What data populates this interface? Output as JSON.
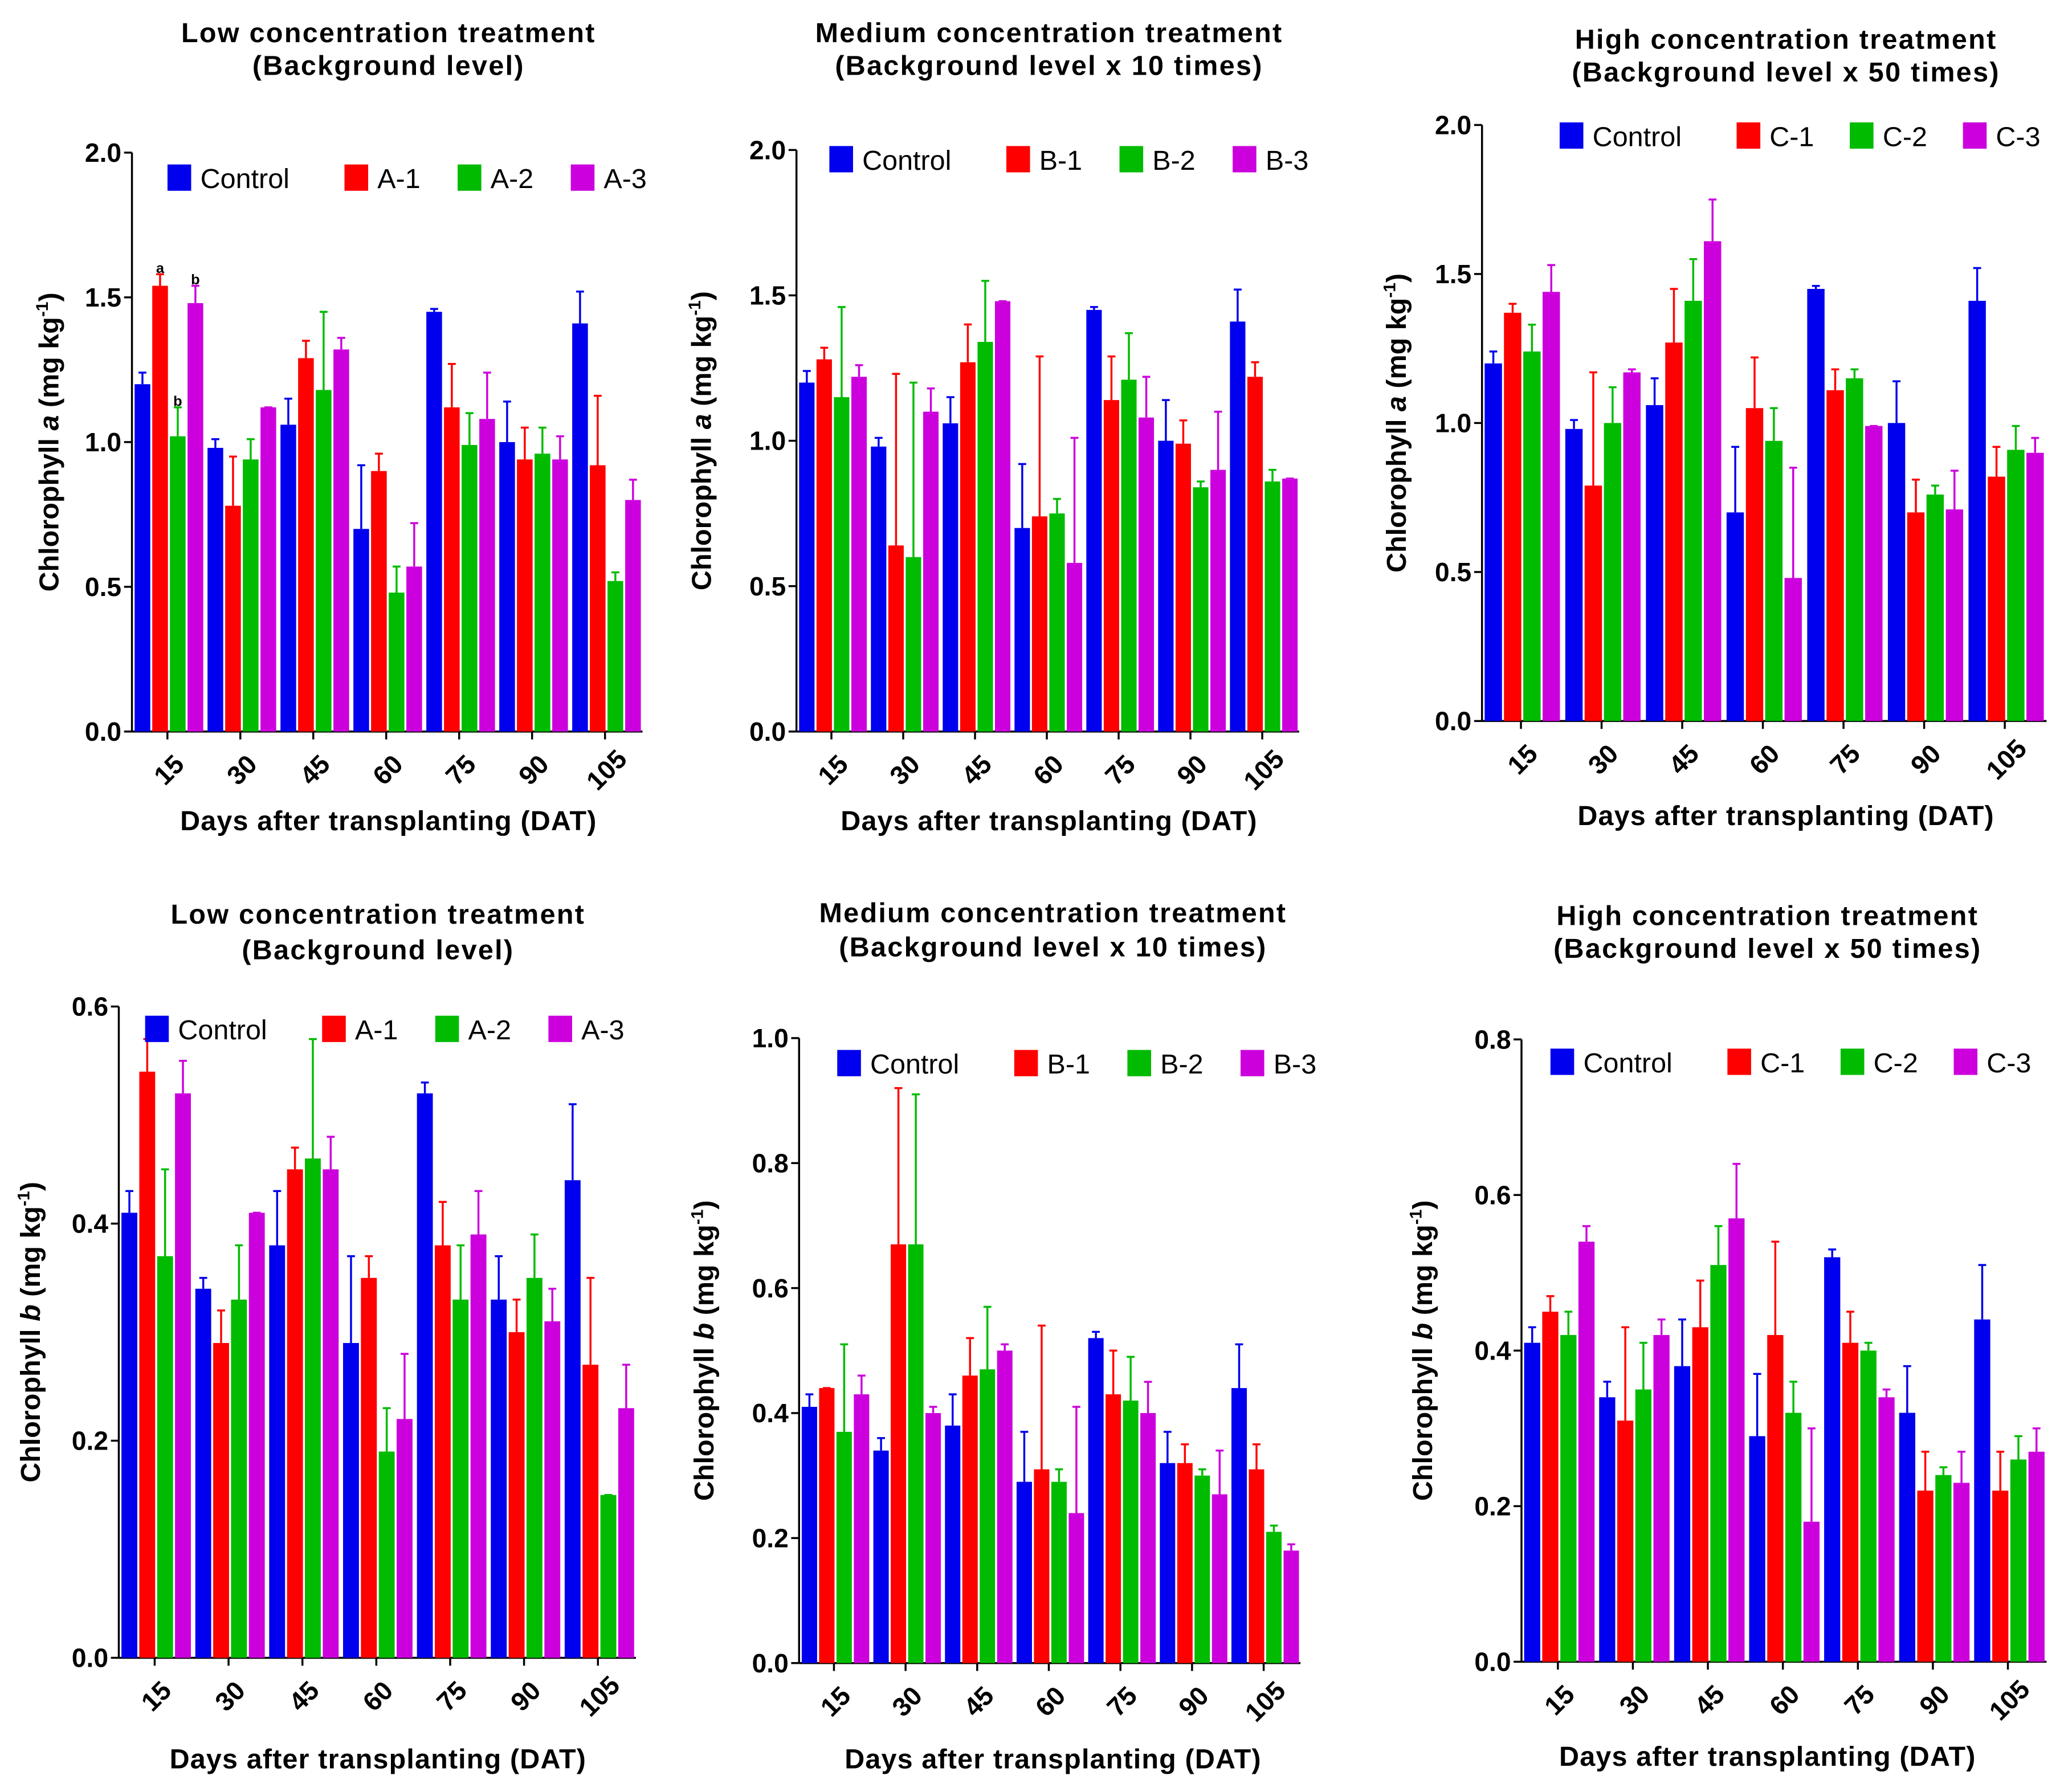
{
  "colors": {
    "Control": "#0000ee",
    "T1": "#ff0000",
    "T2": "#00bb00",
    "T3": "#cc00dd"
  },
  "chart_data": [
    {
      "type": "bar",
      "title": [
        "Low concentration treatment",
        "(Background level)"
      ],
      "ylabel": {
        "pre": "Chlorophyll ",
        "var": "a",
        "mid": " (mg kg",
        "sup": "-1",
        "post": ")"
      },
      "xlabel": "Days after transplanting (DAT)",
      "categories": [
        "15",
        "30",
        "45",
        "60",
        "75",
        "90",
        "105"
      ],
      "ylim": [
        0,
        2.0
      ],
      "yticks": [
        "0.0",
        "0.5",
        "1.0",
        "1.5",
        "2.0"
      ],
      "legend": "top",
      "annotations": [
        {
          "series": "A-1",
          "category": "15",
          "text": "a"
        },
        {
          "series": "A-2",
          "category": "15",
          "text": "b"
        },
        {
          "series": "A-3",
          "category": "15",
          "text": "b"
        }
      ],
      "series": [
        {
          "name": "Control",
          "values": [
            1.2,
            0.98,
            1.06,
            0.7,
            1.45,
            1.0,
            1.41
          ],
          "upper": [
            1.24,
            1.01,
            1.15,
            0.92,
            1.46,
            1.14,
            1.52
          ]
        },
        {
          "name": "A-1",
          "values": [
            1.54,
            0.78,
            1.29,
            0.9,
            1.12,
            0.94,
            0.92
          ],
          "upper": [
            1.58,
            0.95,
            1.35,
            0.96,
            1.27,
            1.05,
            1.16
          ]
        },
        {
          "name": "A-2",
          "values": [
            1.02,
            0.94,
            1.18,
            0.48,
            0.99,
            0.96,
            0.52
          ],
          "upper": [
            1.12,
            1.01,
            1.45,
            0.57,
            1.1,
            1.05,
            0.55
          ]
        },
        {
          "name": "A-3",
          "values": [
            1.48,
            1.12,
            1.32,
            0.57,
            1.08,
            0.94,
            0.8
          ],
          "upper": [
            1.54,
            1.12,
            1.36,
            0.72,
            1.24,
            1.02,
            0.87
          ]
        }
      ]
    },
    {
      "type": "bar",
      "title": [
        "Medium concentration treatment",
        "(Background level x 10 times)"
      ],
      "ylabel": {
        "pre": "Chlorophyll ",
        "var": "a",
        "mid": " (mg kg",
        "sup": "-1",
        "post": ")"
      },
      "xlabel": "Days after transplanting (DAT)",
      "categories": [
        "15",
        "30",
        "45",
        "60",
        "75",
        "90",
        "105"
      ],
      "ylim": [
        0,
        2.0
      ],
      "yticks": [
        "0.0",
        "0.5",
        "1.0",
        "1.5",
        "2.0"
      ],
      "legend": "top",
      "series": [
        {
          "name": "Control",
          "values": [
            1.2,
            0.98,
            1.06,
            0.7,
            1.45,
            1.0,
            1.41
          ],
          "upper": [
            1.24,
            1.01,
            1.15,
            0.92,
            1.46,
            1.14,
            1.52
          ]
        },
        {
          "name": "B-1",
          "values": [
            1.28,
            0.64,
            1.27,
            0.74,
            1.14,
            0.99,
            1.22
          ],
          "upper": [
            1.32,
            1.23,
            1.4,
            1.29,
            1.29,
            1.07,
            1.27
          ]
        },
        {
          "name": "B-2",
          "values": [
            1.15,
            0.6,
            1.34,
            0.75,
            1.21,
            0.84,
            0.86
          ],
          "upper": [
            1.46,
            1.2,
            1.55,
            0.8,
            1.37,
            0.86,
            0.9
          ]
        },
        {
          "name": "B-3",
          "values": [
            1.22,
            1.1,
            1.48,
            0.58,
            1.08,
            0.9,
            0.87
          ],
          "upper": [
            1.26,
            1.18,
            1.48,
            1.01,
            1.22,
            1.1,
            0.87
          ]
        }
      ]
    },
    {
      "type": "bar",
      "title": [
        "High concentration treatment",
        "(Background level x 50 times)"
      ],
      "ylabel": {
        "pre": "Chlorophyll ",
        "var": "a",
        "mid": " (mg kg",
        "sup": "-1",
        "post": ")"
      },
      "xlabel": "Days after transplanting (DAT)",
      "categories": [
        "15",
        "30",
        "45",
        "60",
        "75",
        "90",
        "105"
      ],
      "ylim": [
        0,
        2.0
      ],
      "yticks": [
        "0.0",
        "0.5",
        "1.0",
        "1.5",
        "2.0"
      ],
      "legend": "top",
      "series": [
        {
          "name": "Control",
          "values": [
            1.2,
            0.98,
            1.06,
            0.7,
            1.45,
            1.0,
            1.41
          ],
          "upper": [
            1.24,
            1.01,
            1.15,
            0.92,
            1.46,
            1.14,
            1.52
          ]
        },
        {
          "name": "C-1",
          "values": [
            1.37,
            0.79,
            1.27,
            1.05,
            1.11,
            0.7,
            0.82
          ],
          "upper": [
            1.4,
            1.17,
            1.45,
            1.22,
            1.18,
            0.81,
            0.92
          ]
        },
        {
          "name": "C-2",
          "values": [
            1.24,
            1.0,
            1.41,
            0.94,
            1.15,
            0.76,
            0.91
          ],
          "upper": [
            1.33,
            1.12,
            1.55,
            1.05,
            1.18,
            0.79,
            0.99
          ]
        },
        {
          "name": "C-3",
          "values": [
            1.44,
            1.17,
            1.61,
            0.48,
            0.99,
            0.71,
            0.9
          ],
          "upper": [
            1.53,
            1.18,
            1.75,
            0.85,
            0.99,
            0.84,
            0.95
          ]
        }
      ]
    },
    {
      "type": "bar",
      "title": [
        "Low concentration treatment",
        "(Background level)"
      ],
      "ylabel": {
        "pre": "Chlorophyll ",
        "var": "b",
        "mid": " (mg kg",
        "sup": "-1",
        "post": ")"
      },
      "xlabel": "Days after transplanting (DAT)",
      "categories": [
        "15",
        "30",
        "45",
        "60",
        "75",
        "90",
        "105"
      ],
      "ylim": [
        0,
        0.6
      ],
      "yticks": [
        "0.0",
        "0.2",
        "0.4",
        "0.6"
      ],
      "legend": "top",
      "series": [
        {
          "name": "Control",
          "values": [
            0.41,
            0.34,
            0.38,
            0.29,
            0.52,
            0.33,
            0.44
          ],
          "upper": [
            0.43,
            0.35,
            0.43,
            0.37,
            0.53,
            0.37,
            0.51
          ]
        },
        {
          "name": "A-1",
          "values": [
            0.54,
            0.29,
            0.45,
            0.35,
            0.38,
            0.3,
            0.27
          ],
          "upper": [
            0.57,
            0.32,
            0.47,
            0.37,
            0.42,
            0.33,
            0.35
          ]
        },
        {
          "name": "A-2",
          "values": [
            0.37,
            0.33,
            0.46,
            0.19,
            0.33,
            0.35,
            0.15
          ],
          "upper": [
            0.45,
            0.38,
            0.57,
            0.23,
            0.38,
            0.39,
            0.15
          ]
        },
        {
          "name": "A-3",
          "values": [
            0.52,
            0.41,
            0.45,
            0.22,
            0.39,
            0.31,
            0.23
          ],
          "upper": [
            0.55,
            0.41,
            0.48,
            0.28,
            0.43,
            0.34,
            0.27
          ]
        }
      ]
    },
    {
      "type": "bar",
      "title": [
        "Medium concentration treatment",
        "(Background level x 10 times)"
      ],
      "ylabel": {
        "pre": "Chlorophyll ",
        "var": "b",
        "mid": " (mg kg",
        "sup": "-1",
        "post": ")"
      },
      "xlabel": "Days after transplanting (DAT)",
      "categories": [
        "15",
        "30",
        "45",
        "60",
        "75",
        "90",
        "105"
      ],
      "ylim": [
        0,
        1.0
      ],
      "yticks": [
        "0.0",
        "0.2",
        "0.4",
        "0.6",
        "0.8",
        "1.0"
      ],
      "legend": "top",
      "series": [
        {
          "name": "Control",
          "values": [
            0.41,
            0.34,
            0.38,
            0.29,
            0.52,
            0.32,
            0.44
          ],
          "upper": [
            0.43,
            0.36,
            0.43,
            0.37,
            0.53,
            0.37,
            0.51
          ]
        },
        {
          "name": "B-1",
          "values": [
            0.44,
            0.67,
            0.46,
            0.31,
            0.43,
            0.32,
            0.31
          ],
          "upper": [
            0.44,
            0.92,
            0.52,
            0.54,
            0.5,
            0.35,
            0.35
          ]
        },
        {
          "name": "B-2",
          "values": [
            0.37,
            0.67,
            0.47,
            0.29,
            0.42,
            0.3,
            0.21
          ],
          "upper": [
            0.51,
            0.91,
            0.57,
            0.31,
            0.49,
            0.31,
            0.22
          ]
        },
        {
          "name": "B-3",
          "values": [
            0.43,
            0.4,
            0.5,
            0.24,
            0.4,
            0.27,
            0.18
          ],
          "upper": [
            0.46,
            0.41,
            0.51,
            0.41,
            0.45,
            0.34,
            0.19
          ]
        }
      ]
    },
    {
      "type": "bar",
      "title": [
        "High concentration treatment",
        "(Background level x 50 times)"
      ],
      "ylabel": {
        "pre": "Chlorophyll ",
        "var": "b",
        "mid": " (mg kg",
        "sup": "-1",
        "post": ")"
      },
      "xlabel": "Days after transplanting (DAT)",
      "categories": [
        "15",
        "30",
        "45",
        "60",
        "75",
        "90",
        "105"
      ],
      "ylim": [
        0,
        0.8
      ],
      "yticks": [
        "0.0",
        "0.2",
        "0.4",
        "0.6",
        "0.8"
      ],
      "legend": "top",
      "series": [
        {
          "name": "Control",
          "values": [
            0.41,
            0.34,
            0.38,
            0.29,
            0.52,
            0.32,
            0.44
          ],
          "upper": [
            0.43,
            0.36,
            0.44,
            0.37,
            0.53,
            0.38,
            0.51
          ]
        },
        {
          "name": "C-1",
          "values": [
            0.45,
            0.31,
            0.43,
            0.42,
            0.41,
            0.22,
            0.22
          ],
          "upper": [
            0.47,
            0.43,
            0.49,
            0.54,
            0.45,
            0.27,
            0.27
          ]
        },
        {
          "name": "C-2",
          "values": [
            0.42,
            0.35,
            0.51,
            0.32,
            0.4,
            0.24,
            0.26
          ],
          "upper": [
            0.45,
            0.41,
            0.56,
            0.36,
            0.41,
            0.25,
            0.29
          ]
        },
        {
          "name": "C-3",
          "values": [
            0.54,
            0.42,
            0.57,
            0.18,
            0.34,
            0.23,
            0.27
          ],
          "upper": [
            0.56,
            0.44,
            0.64,
            0.3,
            0.35,
            0.27,
            0.3
          ]
        }
      ]
    }
  ]
}
